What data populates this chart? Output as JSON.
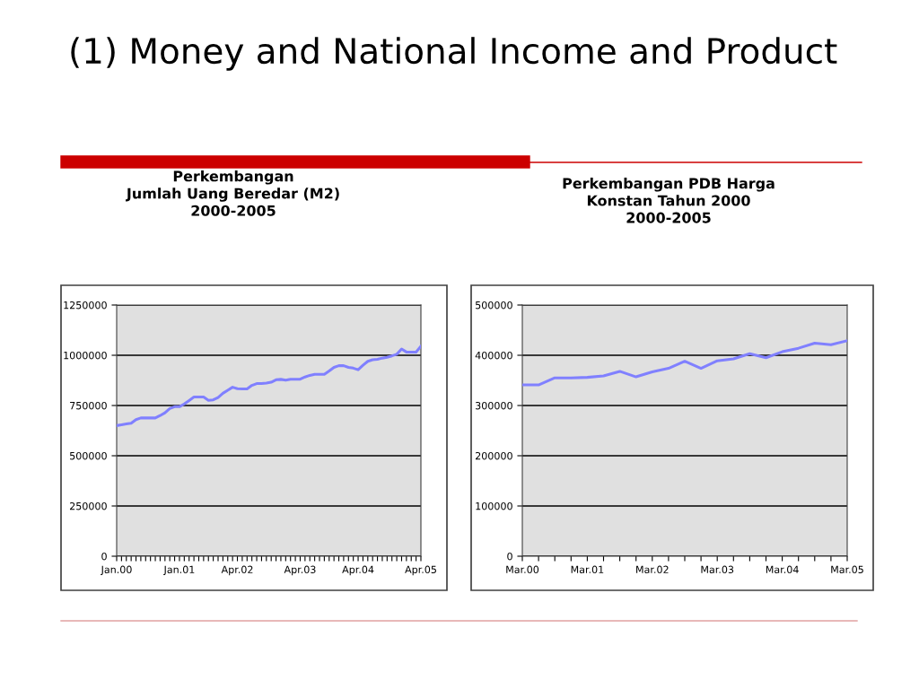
{
  "chart_data": [
    {
      "type": "line",
      "title": "Perkembangan\nJumlah Uang Beredar (M2)\n2000-2005",
      "annotations": [
        "(1) Money and National Income and Product"
      ],
      "categories": [
        "Jan.00",
        null,
        null,
        null,
        null,
        null,
        null,
        null,
        null,
        null,
        null,
        null,
        null,
        "Jan.01",
        null,
        null,
        null,
        null,
        null,
        null,
        null,
        null,
        null,
        null,
        null,
        "Apr.02",
        null,
        null,
        null,
        null,
        null,
        null,
        null,
        null,
        null,
        null,
        null,
        null,
        "Apr.03",
        null,
        null,
        null,
        null,
        null,
        null,
        null,
        null,
        null,
        null,
        null,
        "Apr.04",
        null,
        null,
        null,
        null,
        null,
        null,
        null,
        null,
        null,
        null,
        null,
        null,
        "Apr.05"
      ],
      "series": [
        {
          "color": "#8080ff",
          "values": [
            650000,
            654000,
            658000,
            662000,
            680000,
            688000,
            688000,
            688000,
            688000,
            700000,
            714000,
            735000,
            744000,
            744000,
            758000,
            775000,
            792000,
            792000,
            792000,
            776000,
            778000,
            790000,
            811000,
            826000,
            841000,
            834000,
            833000,
            833000,
            850000,
            859000,
            859000,
            862000,
            866000,
            878000,
            880000,
            876000,
            881000,
            881000,
            881000,
            892000,
            900000,
            905000,
            905000,
            905000,
            922000,
            940000,
            948000,
            948000,
            940000,
            936000,
            928000,
            950000,
            970000,
            978000,
            980000,
            986000,
            990000,
            997000,
            1005000,
            1031000,
            1016000,
            1016000,
            1016000,
            1045000
          ]
        }
      ],
      "ylim": [
        0,
        1250000
      ],
      "yticks": [
        0,
        250000,
        500000,
        750000,
        1000000,
        1250000
      ],
      "grid": "y",
      "legend": false,
      "marker": "none",
      "line_style": "solid"
    },
    {
      "type": "line",
      "title": "Perkembangan PDB Harga\nKonstan Tahun 2000\n2000-2005",
      "categories": [
        "Mar.00",
        null,
        null,
        null,
        "Mar.01",
        null,
        null,
        null,
        "Mar.02",
        null,
        null,
        null,
        "Mar.03",
        null,
        null,
        null,
        "Mar.04",
        null,
        null,
        null,
        "Mar.05"
      ],
      "series": [
        {
          "color": "#8080ff",
          "values": [
            341000,
            341000,
            355000,
            355000,
            356000,
            359000,
            368000,
            357000,
            367000,
            374000,
            388000,
            374000,
            389000,
            393000,
            403000,
            395000,
            407000,
            414000,
            424000,
            421000,
            429000
          ]
        }
      ],
      "ylim": [
        0,
        500000
      ],
      "yticks": [
        0,
        100000,
        200000,
        300000,
        400000,
        500000
      ],
      "grid": "y",
      "legend": false,
      "marker": "none",
      "line_style": "solid"
    }
  ]
}
